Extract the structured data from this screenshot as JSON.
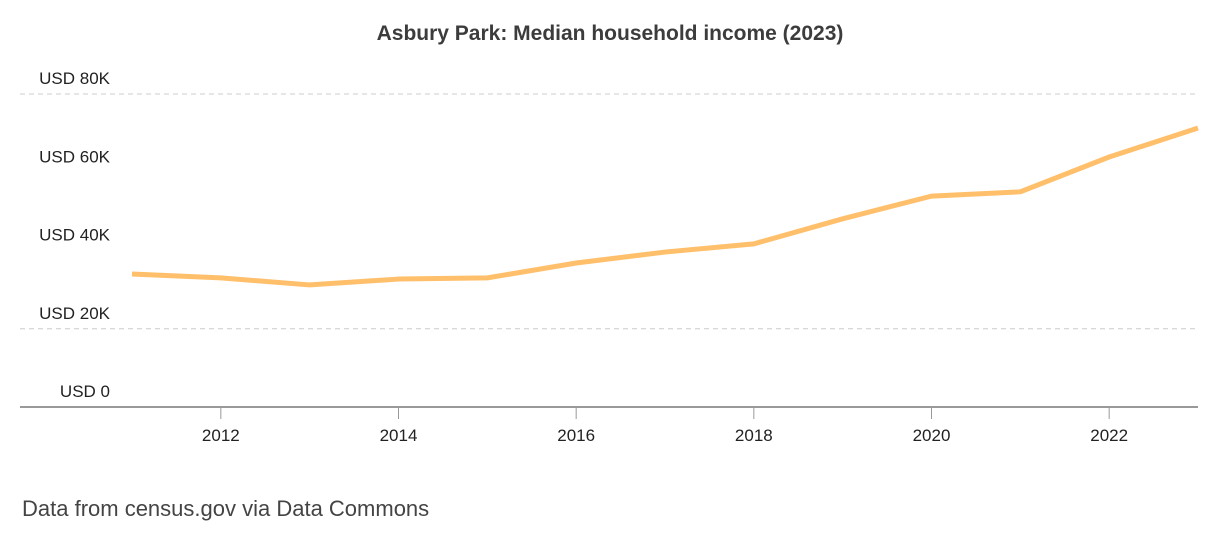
{
  "chart_data": {
    "type": "line",
    "title": "Asbury Park: Median household income (2023)",
    "xlabel": "",
    "ylabel": "",
    "x": [
      2011,
      2012,
      2013,
      2014,
      2015,
      2016,
      2017,
      2018,
      2019,
      2020,
      2021,
      2022,
      2023
    ],
    "series": [
      {
        "values": [
          34000,
          33000,
          31200,
          32700,
          33000,
          36800,
          39600,
          41700,
          48100,
          53900,
          55000,
          63900,
          71300
        ]
      }
    ],
    "ylim": [
      0,
      80000
    ],
    "xlim": [
      2011,
      2023
    ],
    "y_ticks": [
      {
        "v": 0,
        "label": "USD 0"
      },
      {
        "v": 20000,
        "label": "USD 20K"
      },
      {
        "v": 40000,
        "label": "USD 40K"
      },
      {
        "v": 60000,
        "label": "USD 60K"
      },
      {
        "v": 80000,
        "label": "USD 80K"
      }
    ],
    "x_ticks": [
      {
        "v": 2012,
        "label": "2012"
      },
      {
        "v": 2014,
        "label": "2014"
      },
      {
        "v": 2016,
        "label": "2016"
      },
      {
        "v": 2018,
        "label": "2018"
      },
      {
        "v": 2020,
        "label": "2020"
      },
      {
        "v": 2022,
        "label": "2022"
      }
    ],
    "dashed_grid_at": [
      20000,
      80000
    ],
    "line_color": "#ffbf6b",
    "legend": "none"
  },
  "footer": "Data from census.gov via Data Commons"
}
